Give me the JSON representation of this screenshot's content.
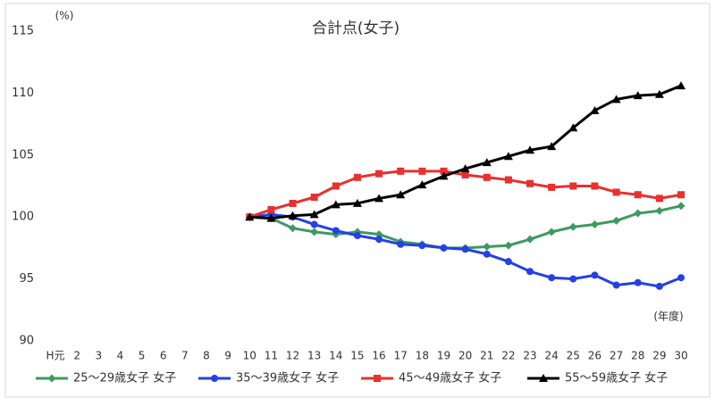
{
  "chart_data": {
    "type": "line",
    "title": "合計点(女子)",
    "y_unit": "(%)",
    "x_unit": "(年度)",
    "categories": [
      "H元",
      "2",
      "3",
      "4",
      "5",
      "6",
      "7",
      "8",
      "9",
      "10",
      "11",
      "12",
      "13",
      "14",
      "15",
      "16",
      "17",
      "18",
      "19",
      "20",
      "21",
      "22",
      "23",
      "24",
      "25",
      "26",
      "27",
      "28",
      "29",
      "30"
    ],
    "ylim": [
      90,
      115
    ],
    "yticks": [
      90,
      95,
      100,
      105,
      110,
      115
    ],
    "grid": false,
    "legend": "bottom",
    "series": [
      {
        "name": "25～29歳女子 女子",
        "color": "#3d9a5f",
        "marker": "diamond",
        "values": [
          null,
          null,
          null,
          null,
          null,
          null,
          null,
          null,
          null,
          100,
          99.9,
          99.1,
          98.8,
          98.6,
          98.8,
          98.6,
          98.0,
          97.8,
          97.5,
          97.5,
          97.6,
          97.7,
          98.2,
          98.8,
          99.2,
          99.4,
          99.7,
          100.3,
          100.5,
          100.9
        ]
      },
      {
        "name": "35～39歳女子 女子",
        "color": "#2440e6",
        "marker": "circle",
        "values": [
          null,
          null,
          null,
          null,
          null,
          null,
          null,
          null,
          null,
          100,
          100.2,
          100.0,
          99.4,
          98.9,
          98.5,
          98.2,
          97.8,
          97.7,
          97.5,
          97.4,
          97.0,
          96.4,
          95.6,
          95.1,
          95.0,
          95.3,
          94.5,
          94.7,
          94.4,
          95.1
        ]
      },
      {
        "name": "45～49歳女子 女子",
        "color": "#e8302f",
        "marker": "square",
        "values": [
          null,
          null,
          null,
          null,
          null,
          null,
          null,
          null,
          null,
          100,
          100.6,
          101.1,
          101.6,
          102.5,
          103.2,
          103.5,
          103.7,
          103.7,
          103.7,
          103.4,
          103.2,
          103.0,
          102.7,
          102.4,
          102.5,
          102.5,
          102.0,
          101.8,
          101.5,
          101.8
        ]
      },
      {
        "name": "55～59歳女子 女子",
        "color": "#000000",
        "marker": "triangle",
        "values": [
          null,
          null,
          null,
          null,
          null,
          null,
          null,
          null,
          null,
          100,
          99.9,
          100.1,
          100.2,
          101.0,
          101.1,
          101.5,
          101.8,
          102.6,
          103.3,
          103.9,
          104.4,
          104.9,
          105.4,
          105.7,
          107.2,
          108.6,
          109.5,
          109.8,
          109.9,
          110.6
        ]
      }
    ]
  }
}
